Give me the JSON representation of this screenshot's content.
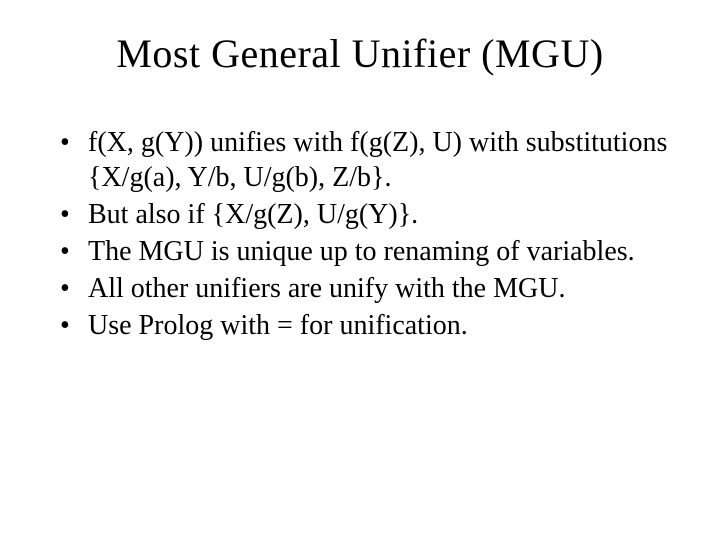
{
  "slide": {
    "title": "Most General Unifier (MGU)",
    "bullets": [
      "f(X, g(Y)) unifies with f(g(Z), U) with substitutions {X/g(a), Y/b, U/g(b), Z/b}.",
      "But also if {X/g(Z), U/g(Y)}.",
      "The MGU is unique up to renaming of variables.",
      "All other unifiers are unify with the MGU.",
      "Use Prolog with = for unification."
    ],
    "colors": {
      "background": "#ffffff",
      "text": "#000000"
    },
    "typography": {
      "title_fontsize_pt": 30,
      "body_fontsize_pt": 21,
      "font_family": "Times New Roman"
    }
  }
}
